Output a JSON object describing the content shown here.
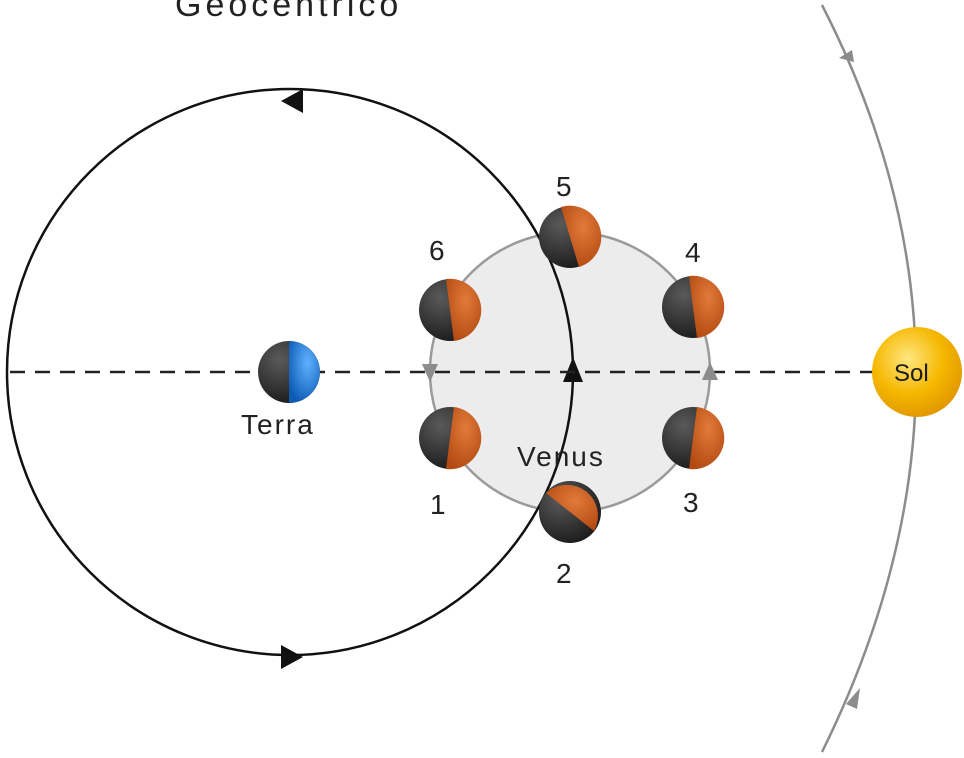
{
  "title": "Geocêntrico",
  "labels": {
    "earth": "Terra",
    "venus": "Venus",
    "sun": "Sol"
  },
  "phases": [
    "1",
    "2",
    "3",
    "4",
    "5",
    "6"
  ],
  "colors": {
    "earth_blue": "#1a6fd4",
    "venus_lit": "#c8581c",
    "venus_dark": "#2b2b2b",
    "sun": "#f5b800",
    "epicycle_fill": "#ececec",
    "orbit_black": "#111111",
    "orbit_gray": "#8c8c8c"
  }
}
